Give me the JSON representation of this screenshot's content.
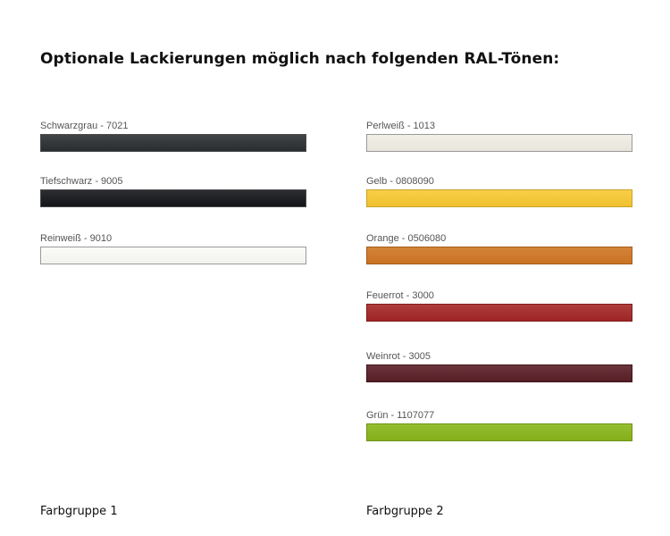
{
  "title": "Optionale Lackierungen möglich nach folgenden RAL-Tönen:",
  "group1": {
    "label": "Farbgruppe 1",
    "colors": [
      {
        "name": "Schwarzgrau - 7021",
        "color": "#2b2f32"
      },
      {
        "name": "Tiefschwarz - 9005",
        "color": "#14161a"
      },
      {
        "name": "Reinweiß - 9010",
        "color": "#fbfbf8"
      }
    ]
  },
  "group2": {
    "label": "Farbgruppe 2",
    "colors": [
      {
        "name": "Perlweiß - 1013",
        "color": "#f1eee4"
      },
      {
        "name": "Gelb - 0808090",
        "color": "#f9c932"
      },
      {
        "name": "Orange - 0506080",
        "color": "#d07624"
      },
      {
        "name": "Feuerrot - 3000",
        "color": "#a42726"
      },
      {
        "name": "Weinrot - 3005",
        "color": "#5a1e26"
      },
      {
        "name": "Grün - 1107077",
        "color": "#8ab61a"
      }
    ]
  }
}
